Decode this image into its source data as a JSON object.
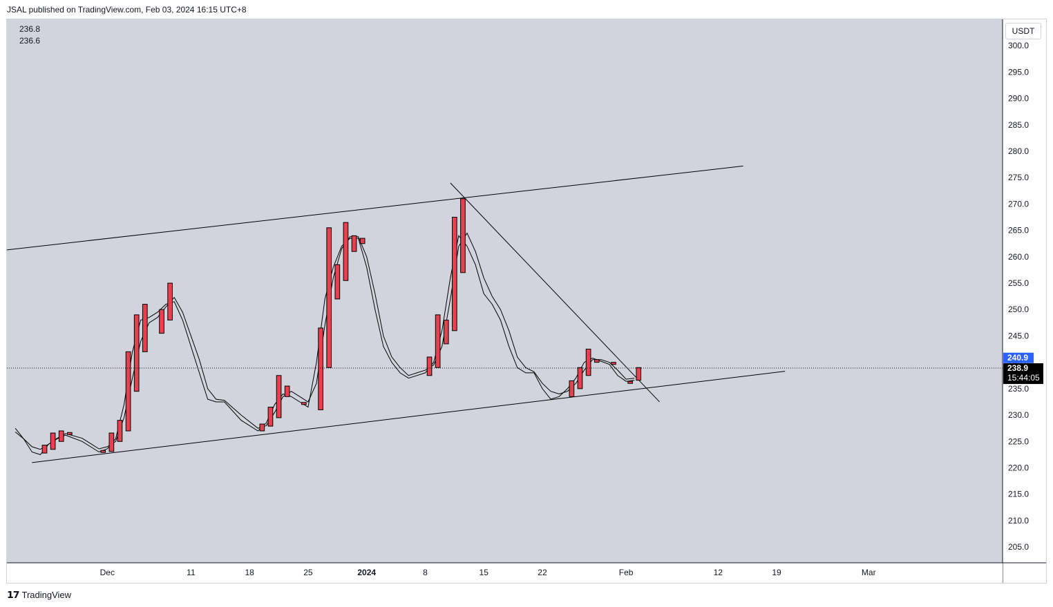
{
  "header": {
    "published": "JSAL published on TradingView.com, Feb 03, 2024 16:15 UTC+8"
  },
  "legend": {
    "line1": "236.8",
    "line2": "236.6"
  },
  "currency": "USDT",
  "footer": {
    "brand": "TradingView"
  },
  "colors": {
    "plot_bg": "#d1d4dd",
    "candle": "#e8404f",
    "line": "#000000",
    "last_price_bg": "#2962ff",
    "countdown_bg": "#000000"
  },
  "chart_data": {
    "type": "candlestick",
    "y_axis": {
      "ticks": [
        205,
        210,
        215,
        220,
        225,
        230,
        235,
        240,
        245,
        250,
        255,
        260,
        265,
        270,
        275,
        280,
        285,
        290,
        295,
        300
      ],
      "range": [
        202,
        305
      ]
    },
    "x_axis": {
      "ticks": [
        "Dec",
        "11",
        "18",
        "25",
        "2024",
        "8",
        "15",
        "22",
        "Feb",
        "12",
        "19",
        "Mar"
      ]
    },
    "price_labels": {
      "blue": "240.9",
      "last": "238.9",
      "countdown": "15:44:05"
    },
    "candles": [
      {
        "date": "2023-11-23",
        "open": 222.8,
        "high": 224.3,
        "low": 222.8,
        "close": 224.3
      },
      {
        "date": "2023-11-24",
        "open": 223.5,
        "high": 226.6,
        "low": 223.5,
        "close": 226.6
      },
      {
        "date": "2023-11-25",
        "open": 225.0,
        "high": 227.0,
        "low": 225.0,
        "close": 227.0
      },
      {
        "date": "2023-11-26",
        "open": 226.4,
        "high": 226.7,
        "low": 226.3,
        "close": 226.7
      },
      {
        "date": "2023-11-30",
        "open": 223.0,
        "high": 223.3,
        "low": 222.9,
        "close": 223.3
      },
      {
        "date": "2023-12-01",
        "open": 223.1,
        "high": 226.6,
        "low": 223.1,
        "close": 226.6
      },
      {
        "date": "2023-12-02",
        "open": 225.0,
        "high": 229.0,
        "low": 225.0,
        "close": 229.0
      },
      {
        "date": "2023-12-03",
        "open": 227.0,
        "high": 242.0,
        "low": 227.0,
        "close": 242.0
      },
      {
        "date": "2023-12-04",
        "open": 234.5,
        "high": 249.0,
        "low": 234.5,
        "close": 249.0
      },
      {
        "date": "2023-12-05",
        "open": 242.0,
        "high": 251.0,
        "low": 242.0,
        "close": 251.0
      },
      {
        "date": "2023-12-07",
        "open": 245.5,
        "high": 250.0,
        "low": 245.5,
        "close": 250.0
      },
      {
        "date": "2023-12-08",
        "open": 248.0,
        "high": 255.0,
        "low": 248.0,
        "close": 255.0
      },
      {
        "date": "2023-12-19",
        "open": 227.0,
        "high": 228.3,
        "low": 227.0,
        "close": 228.3
      },
      {
        "date": "2023-12-20",
        "open": 227.9,
        "high": 231.5,
        "low": 227.9,
        "close": 231.5
      },
      {
        "date": "2023-12-21",
        "open": 229.5,
        "high": 237.5,
        "low": 229.5,
        "close": 237.5
      },
      {
        "date": "2023-12-22",
        "open": 233.5,
        "high": 235.5,
        "low": 233.5,
        "close": 235.5
      },
      {
        "date": "2023-12-24",
        "open": 232.0,
        "high": 232.4,
        "low": 231.9,
        "close": 232.4
      },
      {
        "date": "2023-12-26",
        "open": 231.0,
        "high": 246.5,
        "low": 231.0,
        "close": 246.5
      },
      {
        "date": "2023-12-27",
        "open": 239.0,
        "high": 265.5,
        "low": 239.0,
        "close": 265.5
      },
      {
        "date": "2023-12-28",
        "open": 252.0,
        "high": 258.5,
        "low": 252.0,
        "close": 258.5
      },
      {
        "date": "2023-12-29",
        "open": 255.5,
        "high": 266.5,
        "low": 255.5,
        "close": 266.5
      },
      {
        "date": "2023-12-30",
        "open": 261.0,
        "high": 264.0,
        "low": 261.0,
        "close": 264.0
      },
      {
        "date": "2023-12-31",
        "open": 262.5,
        "high": 263.5,
        "low": 262.5,
        "close": 263.5
      },
      {
        "date": "2024-01-08",
        "open": 237.5,
        "high": 241.0,
        "low": 237.5,
        "close": 241.0
      },
      {
        "date": "2024-01-09",
        "open": 239.0,
        "high": 249.0,
        "low": 239.0,
        "close": 249.0
      },
      {
        "date": "2024-01-10",
        "open": 243.5,
        "high": 248.0,
        "low": 243.5,
        "close": 248.0
      },
      {
        "date": "2024-01-11",
        "open": 246.0,
        "high": 267.5,
        "low": 246.0,
        "close": 267.5
      },
      {
        "date": "2024-01-12",
        "open": 257.0,
        "high": 271.0,
        "low": 257.0,
        "close": 271.0
      },
      {
        "date": "2024-01-25",
        "open": 233.5,
        "high": 236.5,
        "low": 233.5,
        "close": 236.5
      },
      {
        "date": "2024-01-26",
        "open": 235.0,
        "high": 239.0,
        "low": 235.0,
        "close": 239.0
      },
      {
        "date": "2024-01-27",
        "open": 237.5,
        "high": 242.5,
        "low": 237.5,
        "close": 242.5
      },
      {
        "date": "2024-01-28",
        "open": 240.0,
        "high": 240.5,
        "low": 240.0,
        "close": 240.5
      },
      {
        "date": "2024-01-30",
        "open": 239.6,
        "high": 240.0,
        "low": 239.6,
        "close": 240.0
      },
      {
        "date": "2024-02-01",
        "open": 236.0,
        "high": 236.4,
        "low": 235.9,
        "close": 236.4
      },
      {
        "date": "2024-02-02",
        "open": 236.6,
        "high": 239.0,
        "low": 236.6,
        "close": 239.0
      }
    ],
    "ma_fast": [
      [
        "2023-11-20",
        227.5
      ],
      [
        "2023-11-21",
        225.5
      ],
      [
        "2023-11-22",
        223.0
      ],
      [
        "2023-11-23",
        222.5
      ],
      [
        "2023-11-24",
        224.5
      ],
      [
        "2023-11-25",
        225.5
      ],
      [
        "2023-11-26",
        226.2
      ],
      [
        "2023-11-28",
        225.0
      ],
      [
        "2023-11-30",
        223.0
      ],
      [
        "2023-12-01",
        223.6
      ],
      [
        "2023-12-02",
        225.5
      ],
      [
        "2023-12-03",
        232.0
      ],
      [
        "2023-12-04",
        242.0
      ],
      [
        "2023-12-05",
        248.0
      ],
      [
        "2023-12-06",
        248.5
      ],
      [
        "2023-12-07",
        249.5
      ],
      [
        "2023-12-08",
        251.0
      ],
      [
        "2023-12-09",
        251.5
      ],
      [
        "2023-12-10",
        248.0
      ],
      [
        "2023-12-12",
        238.0
      ],
      [
        "2023-12-13",
        233.0
      ],
      [
        "2023-12-14",
        232.5
      ],
      [
        "2023-12-15",
        232.5
      ],
      [
        "2023-12-17",
        229.0
      ],
      [
        "2023-12-19",
        227.0
      ],
      [
        "2023-12-20",
        228.5
      ],
      [
        "2023-12-21",
        232.0
      ],
      [
        "2023-12-22",
        234.0
      ],
      [
        "2023-12-23",
        233.5
      ],
      [
        "2023-12-24",
        232.5
      ],
      [
        "2023-12-25",
        231.5
      ],
      [
        "2023-12-26",
        240.0
      ],
      [
        "2023-12-27",
        252.0
      ],
      [
        "2023-12-28",
        258.0
      ],
      [
        "2023-12-29",
        262.0
      ],
      [
        "2023-12-30",
        263.5
      ],
      [
        "2023-12-31",
        263.5
      ],
      [
        "2024-01-01",
        258.0
      ],
      [
        "2024-01-02",
        250.0
      ],
      [
        "2024-01-03",
        243.0
      ],
      [
        "2024-01-04",
        240.0
      ],
      [
        "2024-01-05",
        238.0
      ],
      [
        "2024-01-06",
        237.0
      ],
      [
        "2024-01-07",
        237.5
      ],
      [
        "2024-01-08",
        238.0
      ],
      [
        "2024-01-09",
        240.0
      ],
      [
        "2024-01-10",
        246.0
      ],
      [
        "2024-01-11",
        256.0
      ],
      [
        "2024-01-12",
        264.0
      ],
      [
        "2024-01-13",
        262.0
      ],
      [
        "2024-01-14",
        258.5
      ],
      [
        "2024-01-15",
        253.0
      ],
      [
        "2024-01-16",
        251.0
      ],
      [
        "2024-01-17",
        248.0
      ],
      [
        "2024-01-18",
        243.0
      ],
      [
        "2024-01-19",
        239.0
      ],
      [
        "2024-01-20",
        238.0
      ],
      [
        "2024-01-21",
        238.0
      ],
      [
        "2024-01-22",
        235.0
      ],
      [
        "2024-01-23",
        233.0
      ],
      [
        "2024-01-24",
        233.5
      ],
      [
        "2024-01-25",
        235.0
      ],
      [
        "2024-01-26",
        237.0
      ],
      [
        "2024-01-27",
        240.0
      ],
      [
        "2024-01-28",
        240.8
      ],
      [
        "2024-01-29",
        240.2
      ],
      [
        "2024-01-30",
        239.6
      ],
      [
        "2024-01-31",
        237.5
      ],
      [
        "2024-02-01",
        236.4
      ],
      [
        "2024-02-02",
        236.6
      ]
    ],
    "ma_slow": [
      [
        "2023-11-20",
        226.8
      ],
      [
        "2023-11-21",
        225.5
      ],
      [
        "2023-11-22",
        224.0
      ],
      [
        "2023-11-23",
        223.5
      ],
      [
        "2023-11-24",
        224.5
      ],
      [
        "2023-11-25",
        225.6
      ],
      [
        "2023-11-26",
        226.5
      ],
      [
        "2023-11-28",
        225.6
      ],
      [
        "2023-11-30",
        223.6
      ],
      [
        "2023-12-01",
        224.0
      ],
      [
        "2023-12-02",
        225.0
      ],
      [
        "2023-12-03",
        229.5
      ],
      [
        "2023-12-04",
        237.0
      ],
      [
        "2023-12-05",
        244.0
      ],
      [
        "2023-12-06",
        247.5
      ],
      [
        "2023-12-07",
        248.5
      ],
      [
        "2023-12-08",
        250.5
      ],
      [
        "2023-12-09",
        252.3
      ],
      [
        "2023-12-10",
        249.5
      ],
      [
        "2023-12-12",
        240.5
      ],
      [
        "2023-12-13",
        235.0
      ],
      [
        "2023-12-14",
        233.0
      ],
      [
        "2023-12-15",
        232.8
      ],
      [
        "2023-12-17",
        230.0
      ],
      [
        "2023-12-19",
        227.5
      ],
      [
        "2023-12-20",
        228.0
      ],
      [
        "2023-12-21",
        230.5
      ],
      [
        "2023-12-22",
        233.5
      ],
      [
        "2023-12-23",
        234.5
      ],
      [
        "2023-12-24",
        233.5
      ],
      [
        "2023-12-25",
        232.5
      ],
      [
        "2023-12-26",
        236.0
      ],
      [
        "2023-12-27",
        247.0
      ],
      [
        "2023-12-28",
        256.0
      ],
      [
        "2023-12-29",
        261.5
      ],
      [
        "2023-12-30",
        263.8
      ],
      [
        "2023-12-31",
        263.8
      ],
      [
        "2024-01-01",
        260.0
      ],
      [
        "2024-01-02",
        253.0
      ],
      [
        "2024-01-03",
        245.0
      ],
      [
        "2024-01-04",
        241.0
      ],
      [
        "2024-01-05",
        239.0
      ],
      [
        "2024-01-06",
        237.5
      ],
      [
        "2024-01-07",
        238.0
      ],
      [
        "2024-01-08",
        238.5
      ],
      [
        "2024-01-09",
        239.5
      ],
      [
        "2024-01-10",
        243.0
      ],
      [
        "2024-01-11",
        252.0
      ],
      [
        "2024-01-12",
        262.0
      ],
      [
        "2024-01-13",
        264.5
      ],
      [
        "2024-01-14",
        261.0
      ],
      [
        "2024-01-15",
        256.0
      ],
      [
        "2024-01-16",
        252.5
      ],
      [
        "2024-01-17",
        250.0
      ],
      [
        "2024-01-18",
        246.0
      ],
      [
        "2024-01-19",
        241.0
      ],
      [
        "2024-01-20",
        239.0
      ],
      [
        "2024-01-21",
        238.2
      ],
      [
        "2024-01-22",
        236.0
      ],
      [
        "2024-01-23",
        234.5
      ],
      [
        "2024-01-24",
        234.0
      ],
      [
        "2024-01-25",
        234.5
      ],
      [
        "2024-01-26",
        236.0
      ],
      [
        "2024-01-27",
        238.5
      ],
      [
        "2024-01-28",
        240.5
      ],
      [
        "2024-01-29",
        240.5
      ],
      [
        "2024-01-30",
        240.0
      ],
      [
        "2024-01-31",
        238.5
      ],
      [
        "2024-02-01",
        236.8
      ],
      [
        "2024-02-02",
        237.0
      ]
    ],
    "trendlines": [
      {
        "name": "upper-channel",
        "from": [
          "2023-11-19",
          261.3
        ],
        "to": [
          "2024-02-15",
          277.2
        ]
      },
      {
        "name": "lower-channel",
        "from": [
          "2023-11-22",
          221.0
        ],
        "to": [
          "2024-02-20",
          238.3
        ]
      },
      {
        "name": "descending-resistance",
        "from": [
          "2024-01-11",
          274.0
        ],
        "to": [
          "2024-02-05",
          232.5
        ]
      }
    ],
    "last_price": 238.9,
    "x_range": [
      "2023-11-19",
      "2024-03-17"
    ]
  }
}
